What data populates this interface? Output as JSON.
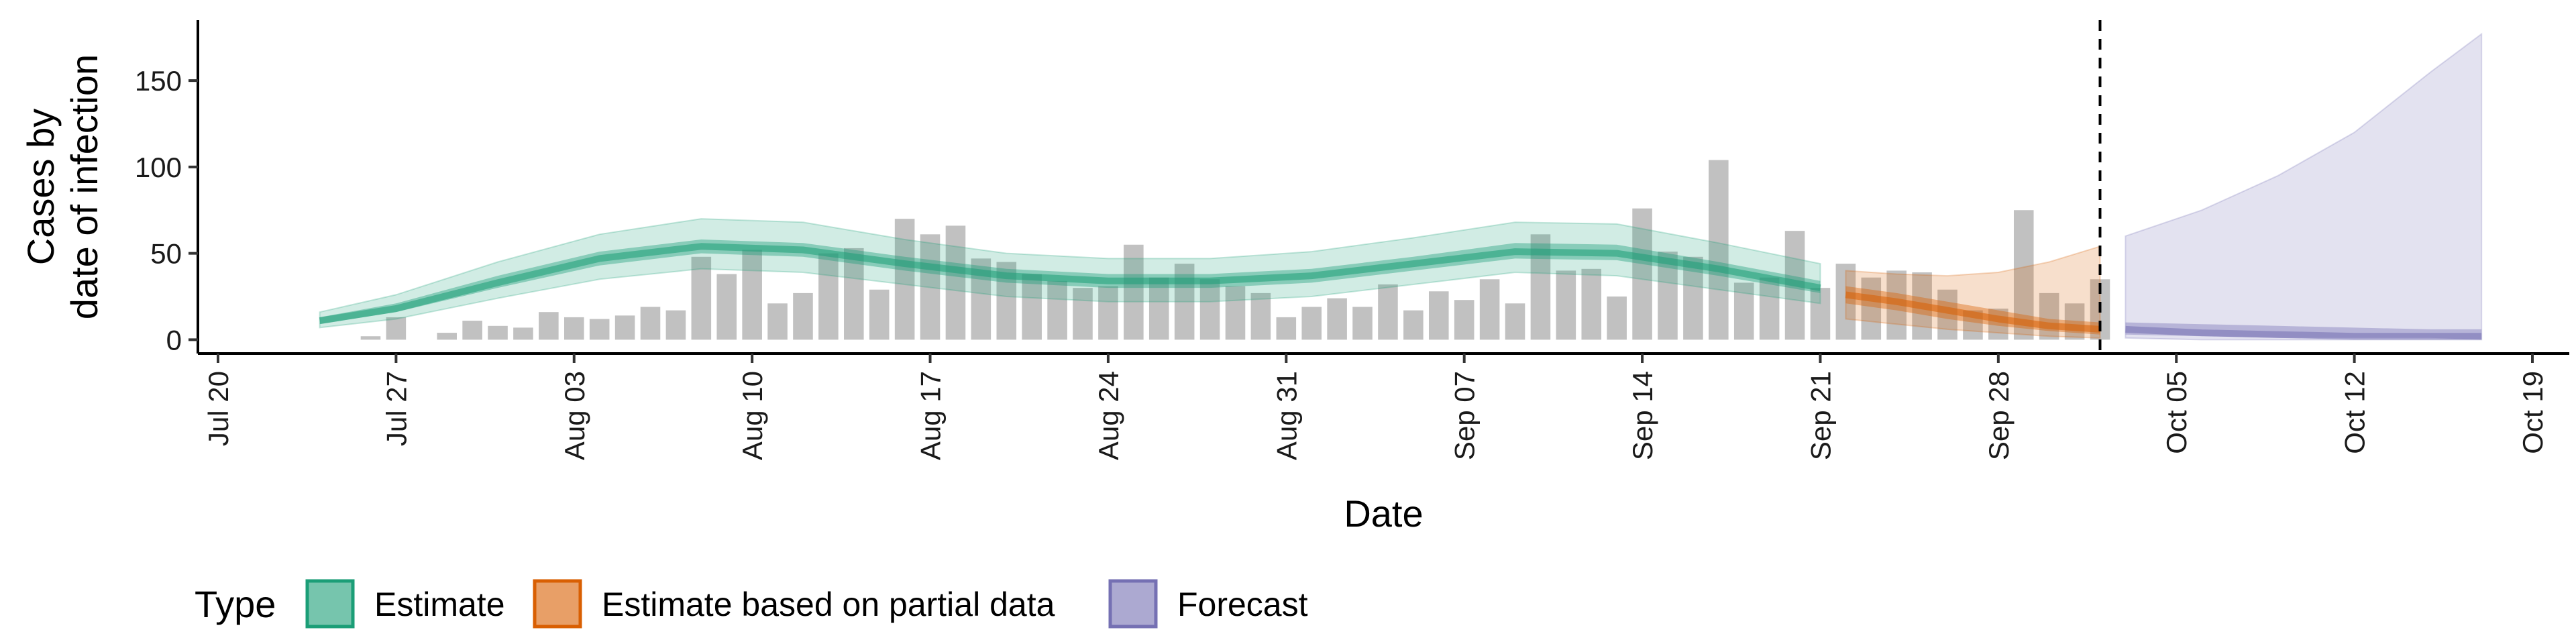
{
  "chart_data": {
    "type": "area",
    "ylabel_lines": [
      "Cases by",
      "date of infection"
    ],
    "xlabel": "Date",
    "ylim": [
      -8,
      185
    ],
    "y_ticks": [
      0,
      50,
      100,
      150
    ],
    "x_ticks": [
      {
        "date": "2020-07-20",
        "label": "Jul 20"
      },
      {
        "date": "2020-07-27",
        "label": "Jul 27"
      },
      {
        "date": "2020-08-03",
        "label": "Aug 03"
      },
      {
        "date": "2020-08-10",
        "label": "Aug 10"
      },
      {
        "date": "2020-08-17",
        "label": "Aug 17"
      },
      {
        "date": "2020-08-24",
        "label": "Aug 24"
      },
      {
        "date": "2020-08-31",
        "label": "Aug 31"
      },
      {
        "date": "2020-09-07",
        "label": "Sep 07"
      },
      {
        "date": "2020-09-14",
        "label": "Sep 14"
      },
      {
        "date": "2020-09-21",
        "label": "Sep 21"
      },
      {
        "date": "2020-09-28",
        "label": "Sep 28"
      },
      {
        "date": "2020-10-05",
        "label": "Oct 05"
      },
      {
        "date": "2020-10-12",
        "label": "Oct 12"
      },
      {
        "date": "2020-10-19",
        "label": "Oct 19"
      }
    ],
    "xlim": [
      "2020-07-20",
      "2020-10-19"
    ],
    "forecast_line_date": "2020-10-02",
    "bars": {
      "color": "#a6a6a6",
      "start_date": "2020-07-26",
      "values": [
        2,
        13,
        0,
        4,
        11,
        8,
        7,
        16,
        13,
        12,
        14,
        19,
        17,
        48,
        38,
        52,
        21,
        27,
        50,
        53,
        29,
        70,
        61,
        66,
        47,
        45,
        38,
        34,
        30,
        31,
        55,
        36,
        44,
        35,
        31,
        27,
        13,
        19,
        24,
        19,
        32,
        17,
        28,
        23,
        35,
        21,
        61,
        40,
        41,
        25,
        76,
        51,
        48,
        104,
        33,
        36,
        63,
        30,
        44,
        36,
        40,
        39,
        29,
        17,
        18,
        75,
        27,
        21,
        35
      ]
    },
    "series": [
      {
        "name": "Estimate",
        "color": "#1b9e77",
        "dates": [
          "2020-07-24",
          "2020-07-27",
          "2020-07-31",
          "2020-08-04",
          "2020-08-08",
          "2020-08-12",
          "2020-08-16",
          "2020-08-20",
          "2020-08-24",
          "2020-08-28",
          "2020-09-01",
          "2020-09-05",
          "2020-09-09",
          "2020-09-13",
          "2020-09-17",
          "2020-09-21"
        ],
        "median": [
          11,
          18,
          33,
          47,
          54,
          52,
          44,
          37,
          34,
          34,
          37,
          44,
          51,
          50,
          41,
          30
        ],
        "inner_lower": [
          9,
          16,
          30,
          43,
          50,
          48,
          40,
          33,
          30,
          30,
          33,
          40,
          47,
          46,
          37,
          27
        ],
        "inner_upper": [
          13,
          21,
          37,
          51,
          58,
          56,
          48,
          41,
          38,
          38,
          41,
          48,
          56,
          55,
          45,
          34
        ],
        "outer_lower": [
          7,
          12,
          24,
          35,
          41,
          39,
          32,
          25,
          22,
          22,
          25,
          32,
          39,
          37,
          29,
          21
        ],
        "outer_upper": [
          16,
          26,
          45,
          61,
          70,
          68,
          58,
          50,
          47,
          47,
          51,
          59,
          68,
          67,
          56,
          44
        ]
      },
      {
        "name": "Estimate based on partial data",
        "color": "#d95f02",
        "dates": [
          "2020-09-22",
          "2020-09-24",
          "2020-09-26",
          "2020-09-28",
          "2020-09-30",
          "2020-10-02"
        ],
        "median": [
          26,
          22,
          17,
          12,
          8,
          6
        ],
        "inner_lower": [
          21,
          17,
          12,
          8,
          5,
          3
        ],
        "inner_upper": [
          31,
          27,
          22,
          17,
          12,
          10
        ],
        "outer_lower": [
          12,
          9,
          6,
          4,
          2,
          1
        ],
        "outer_upper": [
          40,
          38,
          37,
          39,
          45,
          54
        ]
      },
      {
        "name": "Forecast",
        "color": "#7570b3",
        "dates": [
          "2020-10-03",
          "2020-10-06",
          "2020-10-09",
          "2020-10-12",
          "2020-10-15",
          "2020-10-17"
        ],
        "median": [
          6,
          4,
          3,
          2,
          2,
          2
        ],
        "inner_lower": [
          3,
          2,
          1,
          1,
          1,
          0
        ],
        "inner_upper": [
          10,
          9,
          8,
          7,
          6,
          6
        ],
        "outer_lower": [
          1,
          0,
          0,
          0,
          0,
          0
        ],
        "outer_upper": [
          60,
          75,
          95,
          120,
          155,
          177
        ]
      }
    ],
    "legend": {
      "title": "Type",
      "position": "bottom-left",
      "items": [
        "Estimate",
        "Estimate based on partial data",
        "Forecast"
      ]
    },
    "grid": false
  }
}
